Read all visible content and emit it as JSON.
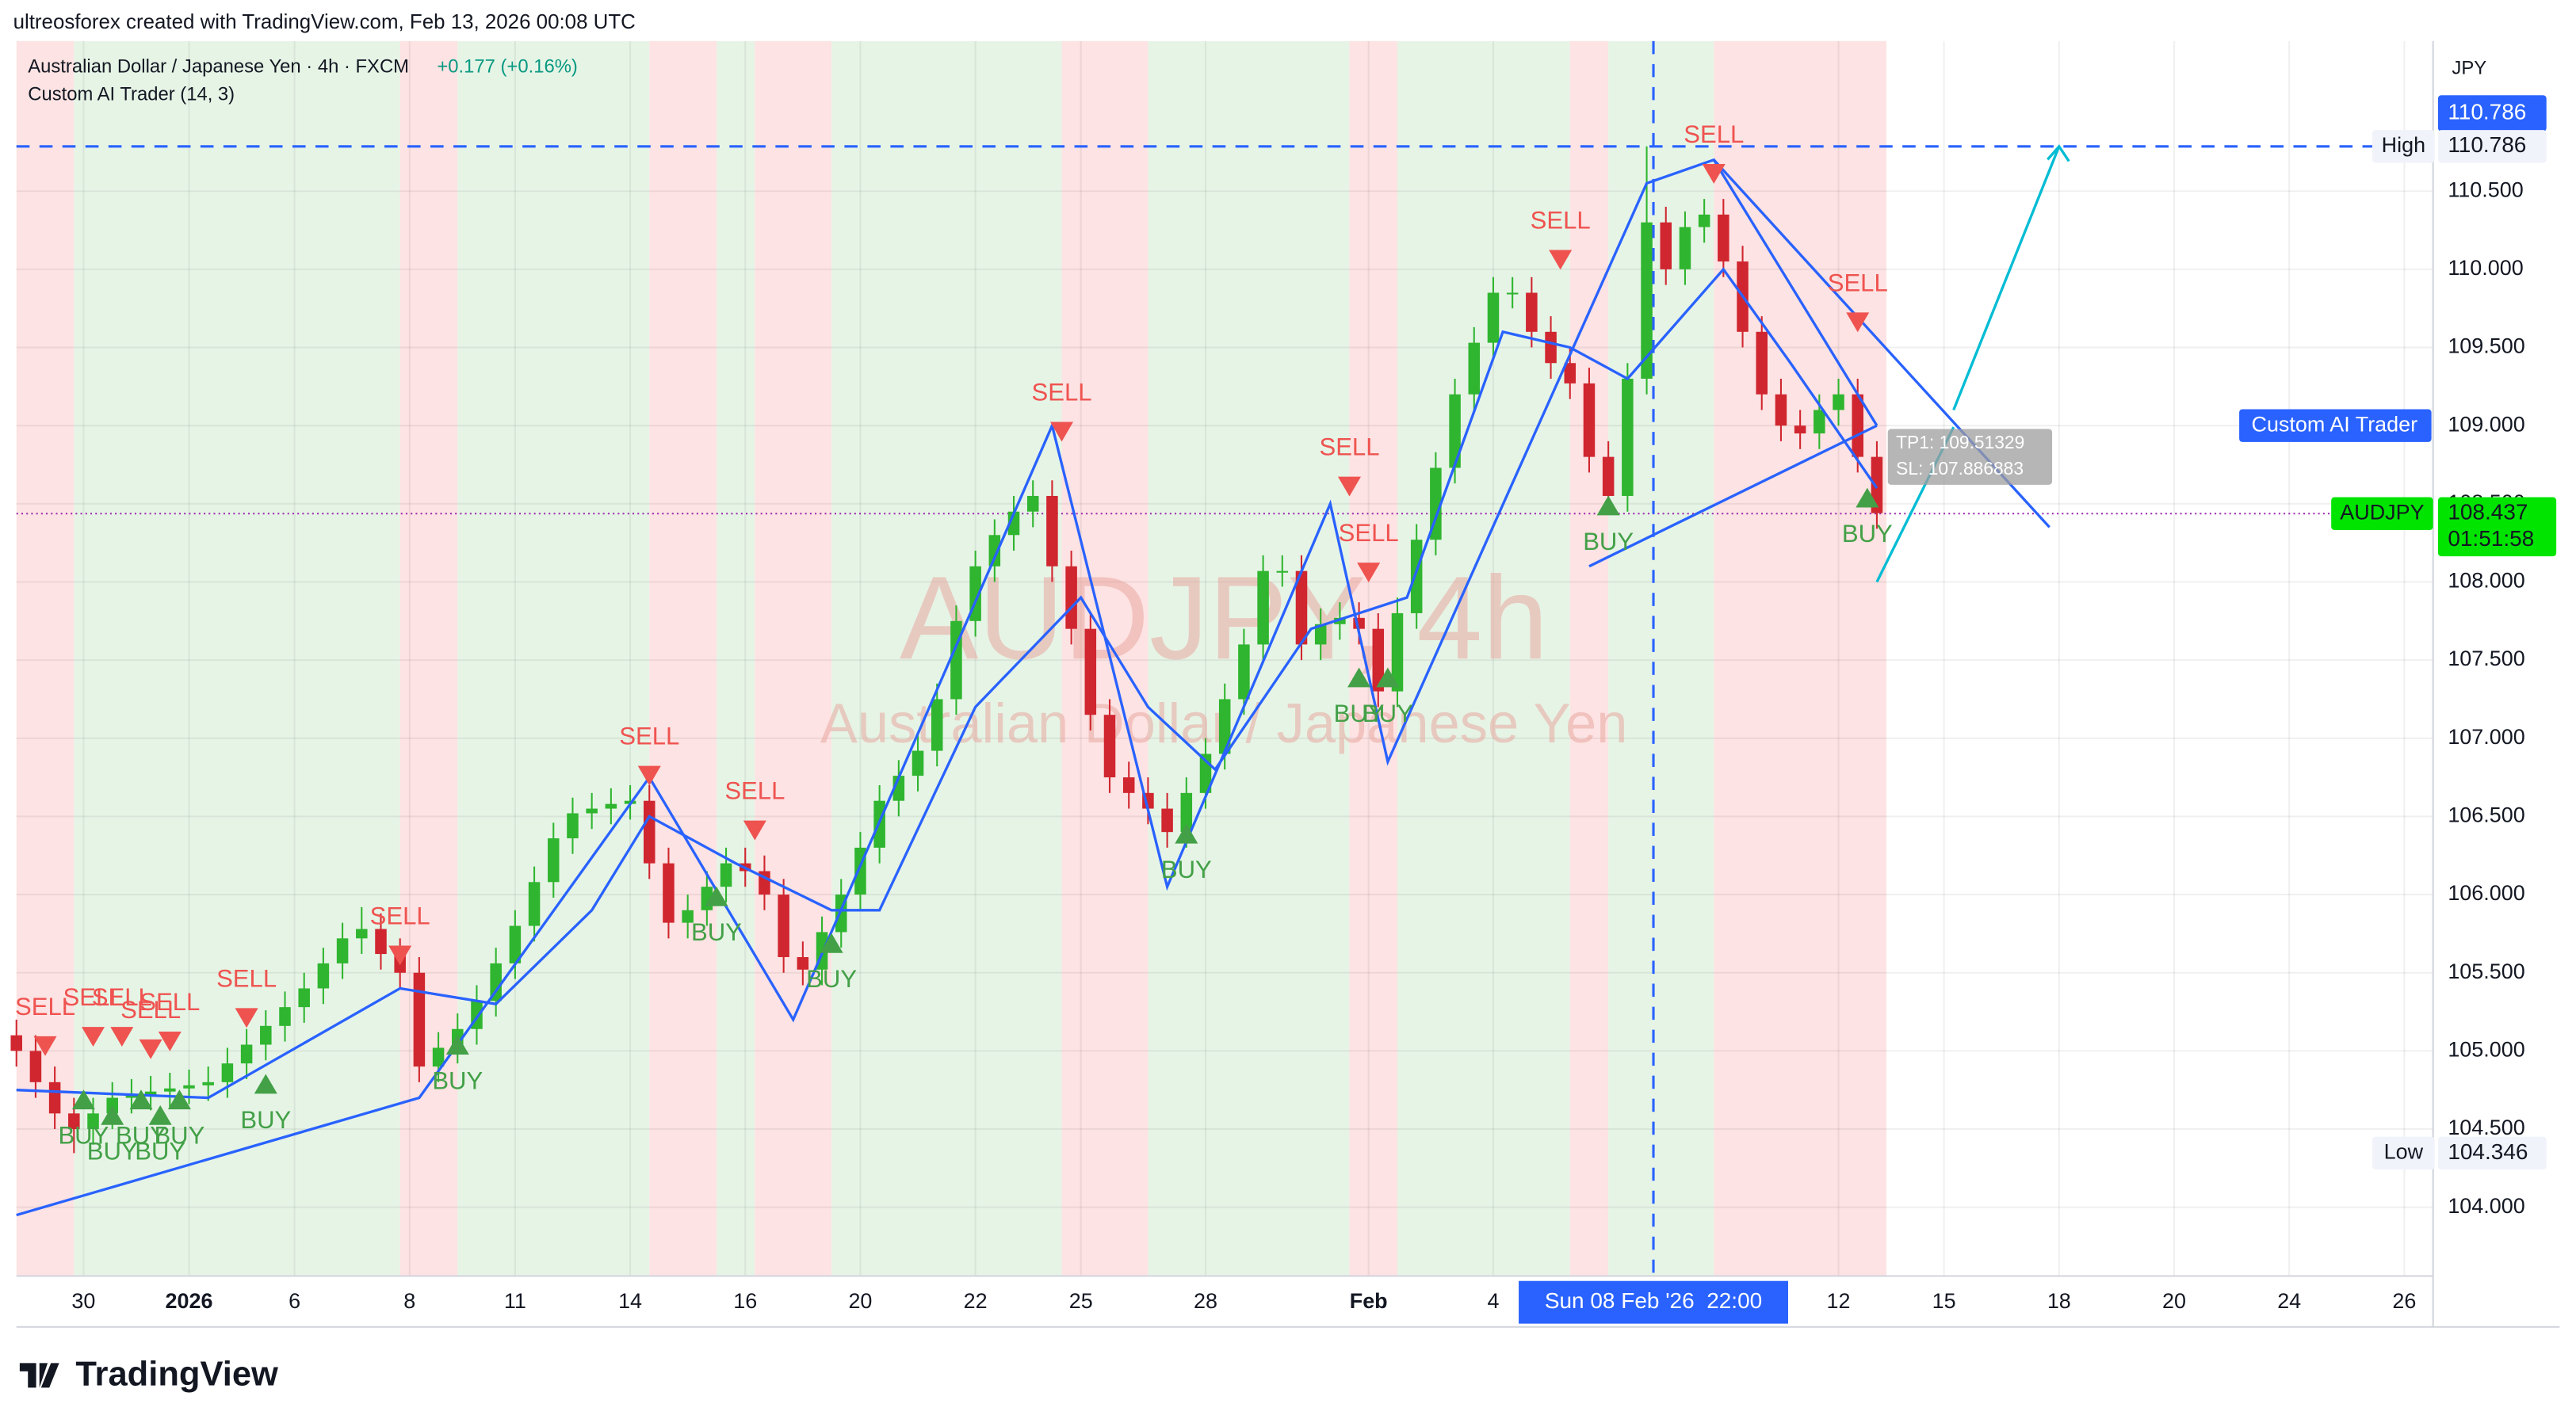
{
  "header": {
    "credit": "ultreosforex created with TradingView.com, Feb 13, 2026 00:08 UTC",
    "logo": "TradingView"
  },
  "chart_data": {
    "type": "candlestick",
    "symbol_line": "Australian Dollar / Japanese Yen · 4h · FXCM",
    "change": "+0.177 (+0.16%)",
    "indicator": "Custom AI Trader (14, 3)",
    "watermark": "AUDJPY, 4h",
    "watermark_sub": "Australian Dollar / Japanese Yen",
    "currency": "JPY",
    "up_color": "#2fb52f",
    "down_color": "#d0262f",
    "xlim": [
      0,
      252
    ],
    "ylim": [
      103.56,
      111.46
    ],
    "yticks": [
      {
        "value": 104,
        "label": "104.000"
      },
      {
        "value": 104.5,
        "label": "104.500"
      },
      {
        "value": 105,
        "label": "105.000"
      },
      {
        "value": 105.5,
        "label": "105.500"
      },
      {
        "value": 106,
        "label": "106.000"
      },
      {
        "value": 106.5,
        "label": "106.500"
      },
      {
        "value": 107,
        "label": "107.000"
      },
      {
        "value": 107.5,
        "label": "107.500"
      },
      {
        "value": 108,
        "label": "108.000"
      },
      {
        "value": 108.5,
        "label": "108.500"
      },
      {
        "value": 109,
        "label": "109.000"
      },
      {
        "value": 109.5,
        "label": "109.500"
      },
      {
        "value": 110,
        "label": "110.000"
      },
      {
        "value": 110.5,
        "label": "110.500"
      }
    ],
    "xticks": [
      {
        "value": 7,
        "label": "30"
      },
      {
        "value": 18,
        "label": "2026"
      },
      {
        "value": 29,
        "label": "6"
      },
      {
        "value": 41,
        "label": "8"
      },
      {
        "value": 52,
        "label": "11"
      },
      {
        "value": 64,
        "label": "14"
      },
      {
        "value": 76,
        "label": "16"
      },
      {
        "value": 88,
        "label": "20"
      },
      {
        "value": 100,
        "label": "22"
      },
      {
        "value": 111,
        "label": "25"
      },
      {
        "value": 124,
        "label": "28"
      },
      {
        "value": 141,
        "label": "Feb"
      },
      {
        "value": 154,
        "label": "4"
      },
      {
        "value": 190,
        "label": "12"
      },
      {
        "value": 201,
        "label": "15"
      },
      {
        "value": 213,
        "label": "18"
      },
      {
        "value": 225,
        "label": "20"
      },
      {
        "value": 237,
        "label": "24"
      },
      {
        "value": 249,
        "label": "26"
      }
    ],
    "grid": true,
    "zones": [
      {
        "from": 0,
        "to": 6,
        "color": "#fde3e3"
      },
      {
        "from": 6,
        "to": 40,
        "color": "#e6f4e6"
      },
      {
        "from": 40,
        "to": 46,
        "color": "#fde3e3"
      },
      {
        "from": 46,
        "to": 66,
        "color": "#e6f4e6"
      },
      {
        "from": 66,
        "to": 73,
        "color": "#fde3e3"
      },
      {
        "from": 73,
        "to": 77,
        "color": "#e6f4e6"
      },
      {
        "from": 77,
        "to": 85,
        "color": "#fde3e3"
      },
      {
        "from": 85,
        "to": 109,
        "color": "#e6f4e6"
      },
      {
        "from": 109,
        "to": 118,
        "color": "#fde3e3"
      },
      {
        "from": 118,
        "to": 139,
        "color": "#e6f4e6"
      },
      {
        "from": 139,
        "to": 144,
        "color": "#fde3e3"
      },
      {
        "from": 144,
        "to": 162,
        "color": "#e6f4e6"
      },
      {
        "from": 162,
        "to": 166,
        "color": "#fde3e3"
      },
      {
        "from": 166,
        "to": 177,
        "color": "#e6f4e6"
      },
      {
        "from": 177,
        "to": 195,
        "color": "#fde3e3"
      }
    ],
    "x": [
      0,
      2,
      4,
      6,
      8,
      10,
      12,
      14,
      16,
      18,
      20,
      22,
      24,
      26,
      28,
      30,
      32,
      34,
      36,
      38,
      40,
      42,
      44,
      46,
      48,
      50,
      52,
      54,
      56,
      58,
      60,
      62,
      64,
      66,
      68,
      70,
      72,
      74,
      76,
      78,
      80,
      82,
      84,
      86,
      88,
      90,
      92,
      94,
      96,
      98,
      100,
      102,
      104,
      106,
      108,
      110,
      112,
      114,
      116,
      118,
      120,
      122,
      124,
      126,
      128,
      130,
      132,
      134,
      136,
      138,
      140,
      142,
      144,
      146,
      148,
      150,
      152,
      154,
      156,
      158,
      160,
      162,
      164,
      166,
      168,
      170,
      172,
      174,
      176,
      178,
      180,
      182,
      184,
      186,
      188,
      190,
      192,
      194
    ],
    "ohlc": [
      [
        105.1,
        105.2,
        104.9,
        105.0
      ],
      [
        105.0,
        105.1,
        104.7,
        104.8
      ],
      [
        104.8,
        104.9,
        104.5,
        104.6
      ],
      [
        104.6,
        104.7,
        104.346,
        104.5
      ],
      [
        104.5,
        104.7,
        104.4,
        104.6
      ],
      [
        104.6,
        104.8,
        104.5,
        104.7
      ],
      [
        104.7,
        104.82,
        104.6,
        104.72
      ],
      [
        104.72,
        104.84,
        104.62,
        104.74
      ],
      [
        104.74,
        104.86,
        104.64,
        104.76
      ],
      [
        104.76,
        104.88,
        104.66,
        104.78
      ],
      [
        104.78,
        104.9,
        104.68,
        104.8
      ],
      [
        104.8,
        105.02,
        104.7,
        104.92
      ],
      [
        104.92,
        105.14,
        104.82,
        105.04
      ],
      [
        105.04,
        105.26,
        104.94,
        105.16
      ],
      [
        105.16,
        105.38,
        105.06,
        105.28
      ],
      [
        105.28,
        105.5,
        105.18,
        105.4
      ],
      [
        105.4,
        105.66,
        105.3,
        105.56
      ],
      [
        105.56,
        105.82,
        105.46,
        105.72
      ],
      [
        105.72,
        105.92,
        105.62,
        105.78
      ],
      [
        105.78,
        105.88,
        105.52,
        105.62
      ],
      [
        105.62,
        105.72,
        105.4,
        105.5
      ],
      [
        105.5,
        105.6,
        104.8,
        104.9
      ],
      [
        104.9,
        105.12,
        104.8,
        105.02
      ],
      [
        105.02,
        105.24,
        104.92,
        105.14
      ],
      [
        105.14,
        105.42,
        105.04,
        105.32
      ],
      [
        105.32,
        105.66,
        105.22,
        105.56
      ],
      [
        105.56,
        105.9,
        105.46,
        105.8
      ],
      [
        105.8,
        106.18,
        105.7,
        106.08
      ],
      [
        106.08,
        106.46,
        105.98,
        106.36
      ],
      [
        106.36,
        106.62,
        106.26,
        106.52
      ],
      [
        106.52,
        106.65,
        106.42,
        106.55
      ],
      [
        106.55,
        106.68,
        106.45,
        106.58
      ],
      [
        106.58,
        106.7,
        106.48,
        106.6
      ],
      [
        106.6,
        106.7,
        106.1,
        106.2
      ],
      [
        106.2,
        106.3,
        105.72,
        105.82
      ],
      [
        105.82,
        106.0,
        105.72,
        105.9
      ],
      [
        105.9,
        106.15,
        105.8,
        106.05
      ],
      [
        106.05,
        106.3,
        105.95,
        106.2
      ],
      [
        106.2,
        106.3,
        106.05,
        106.15
      ],
      [
        106.15,
        106.25,
        105.9,
        106.0
      ],
      [
        106.0,
        106.1,
        105.5,
        105.6
      ],
      [
        105.6,
        105.7,
        105.42,
        105.52
      ],
      [
        105.52,
        105.86,
        105.42,
        105.76
      ],
      [
        105.76,
        106.1,
        105.66,
        106.0
      ],
      [
        106.0,
        106.4,
        105.9,
        106.3
      ],
      [
        106.3,
        106.7,
        106.2,
        106.6
      ],
      [
        106.6,
        106.86,
        106.5,
        106.76
      ],
      [
        106.76,
        107.02,
        106.66,
        106.92
      ],
      [
        106.92,
        107.35,
        106.82,
        107.25
      ],
      [
        107.25,
        107.85,
        107.15,
        107.75
      ],
      [
        107.75,
        108.2,
        107.65,
        108.1
      ],
      [
        108.1,
        108.4,
        108.0,
        108.3
      ],
      [
        108.3,
        108.55,
        108.2,
        108.45
      ],
      [
        108.45,
        108.65,
        108.35,
        108.55
      ],
      [
        108.55,
        108.65,
        108.0,
        108.1
      ],
      [
        108.1,
        108.2,
        107.6,
        107.7
      ],
      [
        107.7,
        107.8,
        107.05,
        107.15
      ],
      [
        107.15,
        107.25,
        106.65,
        106.75
      ],
      [
        106.75,
        106.85,
        106.55,
        106.65
      ],
      [
        106.65,
        106.75,
        106.45,
        106.55
      ],
      [
        106.55,
        106.65,
        106.3,
        106.4
      ],
      [
        106.4,
        106.75,
        106.3,
        106.65
      ],
      [
        106.65,
        107.0,
        106.55,
        106.9
      ],
      [
        106.9,
        107.35,
        106.8,
        107.25
      ],
      [
        107.25,
        107.7,
        107.15,
        107.6
      ],
      [
        107.6,
        108.17,
        107.5,
        108.07
      ],
      [
        108.07,
        108.17,
        107.97,
        108.07
      ],
      [
        108.07,
        108.17,
        107.5,
        107.6
      ],
      [
        107.6,
        107.83,
        107.5,
        107.73
      ],
      [
        107.73,
        107.87,
        107.63,
        107.77
      ],
      [
        107.77,
        107.87,
        107.6,
        107.7
      ],
      [
        107.7,
        107.8,
        107.2,
        107.3
      ],
      [
        107.3,
        107.9,
        107.2,
        107.8
      ],
      [
        107.8,
        108.37,
        107.7,
        108.27
      ],
      [
        108.27,
        108.83,
        108.17,
        108.73
      ],
      [
        108.73,
        109.3,
        108.63,
        109.2
      ],
      [
        109.2,
        109.63,
        109.1,
        109.53
      ],
      [
        109.53,
        109.95,
        109.43,
        109.85
      ],
      [
        109.85,
        109.95,
        109.75,
        109.85
      ],
      [
        109.85,
        109.95,
        109.5,
        109.6
      ],
      [
        109.6,
        109.7,
        109.3,
        109.4
      ],
      [
        109.4,
        109.5,
        109.17,
        109.27
      ],
      [
        109.27,
        109.37,
        108.7,
        108.8
      ],
      [
        108.8,
        108.9,
        108.45,
        108.55
      ],
      [
        108.55,
        109.4,
        108.45,
        109.3
      ],
      [
        109.3,
        110.786,
        109.2,
        110.3
      ],
      [
        110.3,
        110.4,
        109.9,
        110.0
      ],
      [
        110.0,
        110.37,
        109.9,
        110.27
      ],
      [
        110.27,
        110.45,
        110.17,
        110.35
      ],
      [
        110.35,
        110.45,
        109.95,
        110.05
      ],
      [
        110.05,
        110.15,
        109.5,
        109.6
      ],
      [
        109.6,
        109.7,
        109.1,
        109.2
      ],
      [
        109.2,
        109.3,
        108.9,
        109.0
      ],
      [
        109.0,
        109.1,
        108.85,
        108.95
      ],
      [
        108.95,
        109.2,
        108.85,
        109.1
      ],
      [
        109.1,
        109.3,
        109.0,
        109.2
      ],
      [
        109.2,
        109.3,
        108.7,
        108.8
      ],
      [
        108.8,
        108.9,
        108.34,
        108.44
      ]
    ],
    "lines": [
      {
        "color": "#2962ff",
        "x": [
          0,
          20,
          40,
          50,
          60,
          66,
          75,
          85,
          90,
          100,
          111,
          118,
          125,
          135,
          145,
          155,
          162,
          168,
          178,
          185,
          194
        ],
        "y": [
          104.75,
          104.7,
          105.4,
          105.3,
          105.9,
          106.5,
          106.2,
          105.9,
          105.9,
          107.2,
          107.9,
          107.2,
          106.8,
          107.7,
          107.9,
          109.6,
          109.5,
          109.3,
          110.0,
          109.4,
          108.6
        ]
      },
      {
        "color": "#2962ff",
        "x": [
          0,
          42,
          66,
          81,
          108,
          120,
          137,
          143,
          170,
          177,
          194
        ],
        "y": [
          103.95,
          104.7,
          106.75,
          105.2,
          109.0,
          106.05,
          108.5,
          106.85,
          110.55,
          110.7,
          109.0
        ]
      },
      {
        "color": "#2962ff",
        "x": [
          177,
          212
        ],
        "y": [
          110.7,
          108.35
        ]
      },
      {
        "color": "#2962ff",
        "x": [
          164,
          194
        ],
        "y": [
          108.1,
          109.0
        ]
      },
      {
        "color": "#00bcd4",
        "x": [
          194,
          202
        ],
        "y": [
          108.0,
          108.99
        ]
      },
      {
        "color": "#00bcd4",
        "x": [
          202,
          213
        ],
        "y": [
          109.1,
          110.786
        ]
      }
    ],
    "sell": {
      "color": "#ef5350",
      "points": [
        {
          "label": "SELL",
          "x": 3,
          "y": 105.02
        },
        {
          "label": "SELL",
          "x": 8,
          "y": 105.08
        },
        {
          "label": "SELL",
          "x": 11,
          "y": 105.08
        },
        {
          "label": "SELL",
          "x": 14,
          "y": 105.0
        },
        {
          "label": "SELL",
          "x": 16,
          "y": 105.05
        },
        {
          "label": "SELL",
          "x": 24,
          "y": 105.2
        },
        {
          "label": "SELL",
          "x": 40,
          "y": 105.6
        },
        {
          "label": "SELL",
          "x": 66,
          "y": 106.75
        },
        {
          "label": "SELL",
          "x": 77,
          "y": 106.4
        },
        {
          "label": "SELL",
          "x": 109,
          "y": 108.95
        },
        {
          "label": "SELL",
          "x": 139,
          "y": 108.6
        },
        {
          "label": "SELL",
          "x": 141,
          "y": 108.05
        },
        {
          "label": "SELL",
          "x": 161,
          "y": 110.05
        },
        {
          "label": "SELL",
          "x": 177,
          "y": 110.6
        },
        {
          "label": "SELL",
          "x": 192,
          "y": 109.65
        }
      ]
    },
    "buy": {
      "color": "#43a047",
      "points": [
        {
          "label": "BUY",
          "x": 7,
          "y": 104.7
        },
        {
          "label": "BUY",
          "x": 10,
          "y": 104.6
        },
        {
          "label": "BUY",
          "x": 13,
          "y": 104.7
        },
        {
          "label": "BUY",
          "x": 15,
          "y": 104.6
        },
        {
          "label": "BUY",
          "x": 17,
          "y": 104.7
        },
        {
          "label": "BUY",
          "x": 26,
          "y": 104.8
        },
        {
          "label": "BUY",
          "x": 46,
          "y": 105.05
        },
        {
          "label": "BUY",
          "x": 73,
          "y": 106.0
        },
        {
          "label": "BUY",
          "x": 85,
          "y": 105.7
        },
        {
          "label": "BUY",
          "x": 122,
          "y": 106.4
        },
        {
          "label": "BUY",
          "x": 140,
          "y": 107.4
        },
        {
          "label": "BUY",
          "x": 143,
          "y": 107.4
        },
        {
          "label": "BUY",
          "x": 166,
          "y": 108.5
        },
        {
          "label": "BUY",
          "x": 193,
          "y": 108.55
        }
      ]
    },
    "high": {
      "label": "High",
      "value": 110.786
    },
    "low": {
      "label": "Low",
      "value": 104.346
    },
    "last": {
      "symbol": "AUDJPY",
      "value": 108.437,
      "countdown": "01:51:58"
    },
    "indicator_tag": {
      "label": "Custom AI Trader",
      "value": 109.0
    },
    "tp_sl": {
      "tp": "TP1: 109.51329",
      "sl": "SL: 107.886883",
      "x": 196,
      "y": 108.8
    },
    "crosshair": {
      "x": 170.7,
      "label": "Sun 08 Feb '26  22:00"
    }
  }
}
